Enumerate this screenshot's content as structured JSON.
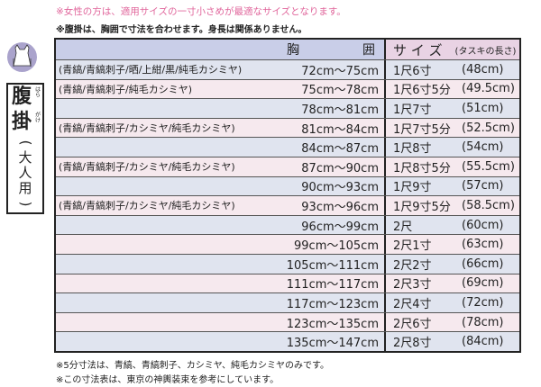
{
  "notes_top": [
    "※女性の方は、適用サイズの一寸小さめが最適なサイズとなります。",
    "※腹掛は、胸囲で寸法を合わせます。身長は関係ありません。"
  ],
  "notes_bottom": [
    "※5分寸法は、青縞、青縞刺子、カシミヤ、純毛カシミヤのみです。",
    "※この寸法表は、東京の神輿装束を参考にしています。"
  ],
  "badge": {
    "title1": "腹",
    "title2": "掛",
    "ruby1": "はら",
    "ruby2": "がけ",
    "sub": [
      "(",
      "大",
      "人",
      "用",
      ")"
    ]
  },
  "header": {
    "chest1": "胸",
    "chest2": "囲",
    "size": "サ イ ズ",
    "size_note": "(タスキの長さ)"
  },
  "rows": [
    {
      "material": "(青縞/青縞刺子/晒/上紺/黒/純毛カシミヤ)",
      "chest": "72cm～75cm",
      "size": "1尺6寸",
      "cm": "(48cm)"
    },
    {
      "material": "(青縞/青縞刺子/純毛カシミヤ)",
      "chest": "75cm～78cm",
      "size": "1尺6寸5分",
      "cm": "(49.5cm)"
    },
    {
      "material": "",
      "chest": "78cm～81cm",
      "size": "1尺7寸",
      "cm": "(51cm)"
    },
    {
      "material": "(青縞/青縞刺子/カシミヤ/純毛カシミヤ)",
      "chest": "81cm～84cm",
      "size": "1尺7寸5分",
      "cm": "(52.5cm)"
    },
    {
      "material": "",
      "chest": "84cm～87cm",
      "size": "1尺8寸",
      "cm": "(54cm)"
    },
    {
      "material": "(青縞/青縞刺子/カシミヤ/純毛カシミヤ)",
      "chest": "87cm～90cm",
      "size": "1尺8寸5分",
      "cm": "(55.5cm)"
    },
    {
      "material": "",
      "chest": "90cm～93cm",
      "size": "1尺9寸",
      "cm": "(57cm)"
    },
    {
      "material": "(青縞/青縞刺子/カシミヤ/純毛カシミヤ)",
      "chest": "93cm～96cm",
      "size": "1尺9寸5分",
      "cm": "(58.5cm)"
    },
    {
      "material": "",
      "chest": "96cm～99cm",
      "size": "2尺",
      "cm": "(60cm)"
    },
    {
      "material": "",
      "chest": "99cm～105cm",
      "size": "2尺1寸",
      "cm": "(63cm)"
    },
    {
      "material": "",
      "chest": "105cm～111cm",
      "size": "2尺2寸",
      "cm": "(66cm)"
    },
    {
      "material": "",
      "chest": "111cm～117cm",
      "size": "2尺3寸",
      "cm": "(69cm)"
    },
    {
      "material": "",
      "chest": "117cm～123cm",
      "size": "2尺4寸",
      "cm": "(72cm)"
    },
    {
      "material": "",
      "chest": "123cm～135cm",
      "size": "2尺6寸",
      "cm": "(78cm)"
    },
    {
      "material": "",
      "chest": "135cm～147cm",
      "size": "2尺8寸",
      "cm": "(84cm)"
    }
  ]
}
